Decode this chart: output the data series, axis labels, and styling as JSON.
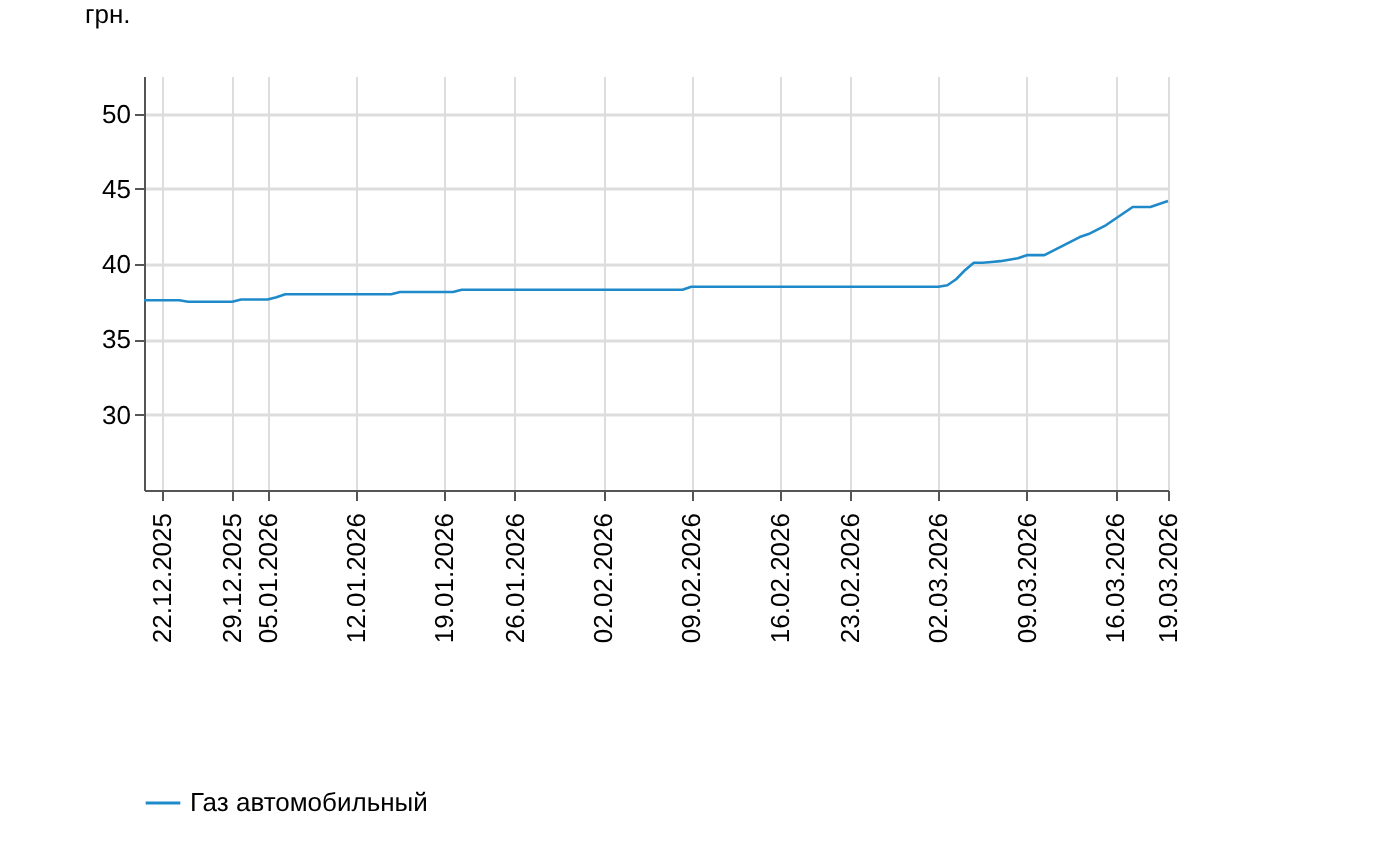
{
  "chart_data": {
    "type": "line",
    "ylabel": "грн.",
    "categories": [
      null,
      null,
      "22.12.2025",
      null,
      null,
      null,
      null,
      null,
      null,
      null,
      "29.12.2025",
      null,
      null,
      null,
      "05.01.2026",
      null,
      null,
      null,
      null,
      null,
      null,
      null,
      null,
      null,
      "12.01.2026",
      null,
      null,
      null,
      null,
      null,
      null,
      null,
      null,
      null,
      "19.01.2026",
      null,
      null,
      null,
      null,
      null,
      null,
      null,
      "26.01.2026",
      null,
      null,
      null,
      null,
      null,
      null,
      null,
      null,
      null,
      "02.02.2026",
      null,
      null,
      null,
      null,
      null,
      null,
      null,
      null,
      null,
      "09.02.2026",
      null,
      null,
      null,
      null,
      null,
      null,
      null,
      null,
      null,
      "16.02.2026",
      null,
      null,
      null,
      null,
      null,
      null,
      null,
      "23.02.2026",
      null,
      null,
      null,
      null,
      null,
      null,
      null,
      null,
      null,
      "02.03.2026",
      null,
      null,
      null,
      null,
      null,
      null,
      null,
      null,
      null,
      "09.03.2026",
      null,
      null,
      null,
      null,
      null,
      null,
      null,
      null,
      null,
      "16.03.2026",
      null,
      null,
      null,
      null,
      null,
      "19.03.2026"
    ],
    "series": [
      {
        "name": "Газ автомобильный",
        "color": "#1f8ac9",
        "values": [
          37.6,
          37.6,
          37.6,
          37.6,
          37.6,
          37.5,
          37.5,
          37.5,
          37.5,
          37.5,
          37.5,
          37.65,
          37.65,
          37.65,
          37.65,
          37.8,
          38.0,
          38.0,
          38.0,
          38.0,
          38.0,
          38.0,
          38.0,
          38.0,
          38.0,
          38.0,
          38.0,
          38.0,
          38.0,
          38.15,
          38.15,
          38.15,
          38.15,
          38.15,
          38.15,
          38.15,
          38.3,
          38.3,
          38.3,
          38.3,
          38.3,
          38.3,
          38.3,
          38.3,
          38.3,
          38.3,
          38.3,
          38.3,
          38.3,
          38.3,
          38.3,
          38.3,
          38.3,
          38.3,
          38.3,
          38.3,
          38.3,
          38.3,
          38.3,
          38.3,
          38.3,
          38.3,
          38.5,
          38.5,
          38.5,
          38.5,
          38.5,
          38.5,
          38.5,
          38.5,
          38.5,
          38.5,
          38.5,
          38.5,
          38.5,
          38.5,
          38.5,
          38.5,
          38.5,
          38.5,
          38.5,
          38.5,
          38.5,
          38.5,
          38.5,
          38.5,
          38.5,
          38.5,
          38.5,
          38.5,
          38.5,
          38.6,
          39.0,
          39.6,
          40.1,
          40.1,
          40.15,
          40.2,
          40.3,
          40.4,
          40.6,
          40.6,
          40.6,
          40.9,
          41.2,
          41.5,
          41.8,
          42.0,
          42.3,
          42.6,
          43.0,
          43.4,
          43.8,
          43.8,
          43.8,
          44.0,
          44.2
        ]
      }
    ],
    "ylim": [
      25,
      52.5
    ],
    "yticks": [
      30,
      35,
      40,
      45,
      50
    ],
    "grid": true,
    "legend": "bottom left"
  }
}
